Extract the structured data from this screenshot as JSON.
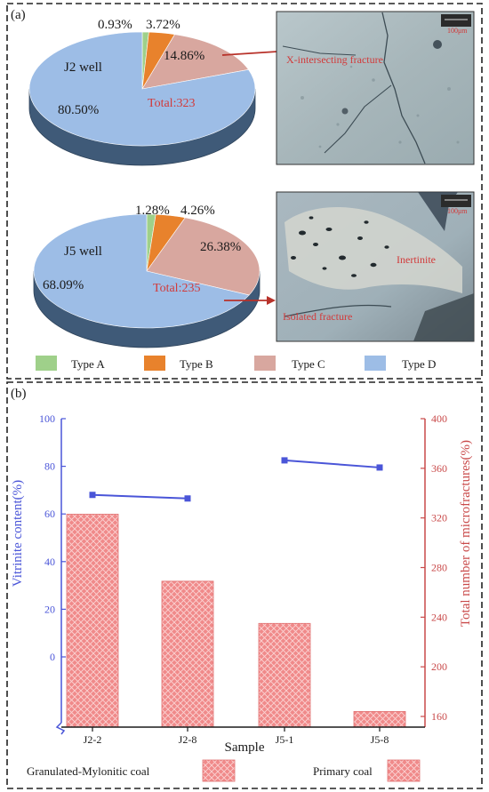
{
  "panel_a": {
    "label": "(a)",
    "pies": [
      {
        "well": "J2 well",
        "total": "Total:323",
        "labels": [
          "0.93%",
          "3.72%",
          "14.86%",
          "80.50%"
        ]
      },
      {
        "well": "J5 well",
        "total": "Total:235",
        "labels": [
          "1.28%",
          "4.26%",
          "26.38%",
          "68.09%"
        ]
      }
    ],
    "photos": [
      {
        "annotation": "X-intersecting fracture",
        "scale": "100μm"
      },
      {
        "annotation1": "Inertinite",
        "annotation2": "Isolated fracture",
        "scale": "100μm"
      }
    ],
    "legend": [
      "Type A",
      "Type B",
      "Type C",
      "Type D"
    ]
  },
  "panel_b": {
    "label": "(b)",
    "xlabel": "Sample",
    "ylabel_left": "Vitrinite content(%)",
    "ylabel_right": "Total number of microfractures(%)",
    "left_ticks": [
      "100",
      "80",
      "60",
      "40",
      "20",
      "0"
    ],
    "right_ticks": [
      "400",
      "360",
      "320",
      "280",
      "240",
      "200",
      "160"
    ],
    "legend": [
      "Granulated-Mylonitic coal",
      "Primary coal"
    ]
  },
  "colors": {
    "type_a": "#9fd08a",
    "type_b": "#e8822c",
    "type_c": "#d8a79f",
    "type_d": "#9dbde6",
    "line": "#4a55d8",
    "bar": "#f08a8a",
    "right_axis": "#c94a4a"
  },
  "chart_data": [
    {
      "type": "pie",
      "series": [
        {
          "name": "J2 well",
          "values": [
            0.93,
            3.72,
            14.86,
            80.5
          ]
        }
      ],
      "categories": [
        "Type A",
        "Type B",
        "Type C",
        "Type D"
      ],
      "total": 323,
      "legend": "bottom"
    },
    {
      "type": "pie",
      "series": [
        {
          "name": "J5 well",
          "values": [
            1.28,
            4.26,
            26.38,
            68.09
          ]
        }
      ],
      "categories": [
        "Type A",
        "Type B",
        "Type C",
        "Type D"
      ],
      "total": 235,
      "legend": "bottom"
    },
    {
      "type": "bar",
      "categories": [
        "J2-2",
        "J2-8",
        "J5-1",
        "J5-8"
      ],
      "xlabel": "Sample",
      "ylabel": "Total number of microfractures(%)",
      "ylim": [
        160,
        400
      ],
      "series": [
        {
          "name": "Granulated-Mylonitic coal",
          "values": [
            323,
            269,
            235,
            164
          ],
          "axis": "right"
        }
      ],
      "line": {
        "ylabel": "Vitrinite content(%)",
        "ylim": [
          0,
          100
        ],
        "values": [
          68,
          66.5,
          82.5,
          79.5
        ],
        "axis": "left"
      },
      "grid": false,
      "legend": "bottom"
    }
  ]
}
